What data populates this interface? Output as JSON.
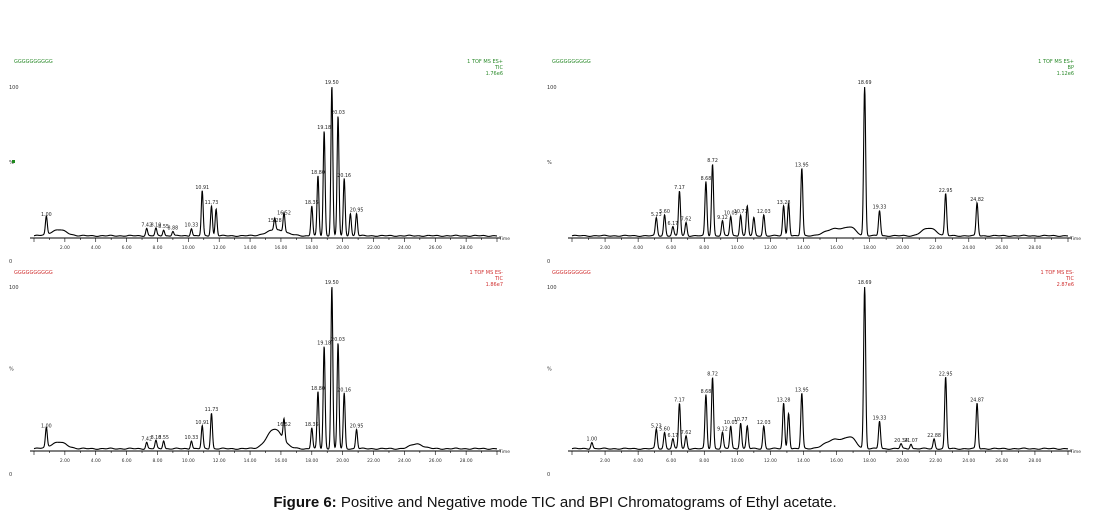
{
  "caption": {
    "label": "Figure 6:",
    "text": "Positive and Negative mode TIC and BPI Chromatograms of Ethyl acetate."
  },
  "colors": {
    "trace": "#000000",
    "pos_header": "#2a8a2a",
    "neg_header": "#d03030"
  },
  "chart_data": [
    {
      "type": "line",
      "panel": "top-left",
      "header_left": "GGGGGGGGGG",
      "header_right": [
        "1 TOF MS ES+",
        "TIC",
        "1.76e6"
      ],
      "ytick_labels": [
        "100",
        "%",
        "0"
      ],
      "xlim": [
        0,
        30
      ],
      "xtick_labels": [
        "2.00",
        "4.00",
        "6.00",
        "8.00",
        "10.00",
        "12.00",
        "14.00",
        "16.00",
        "18.00",
        "20.00",
        "22.00",
        "24.00",
        "26.00",
        "28.00"
      ],
      "peaks": [
        {
          "x": 0.8,
          "y": 12,
          "label": "1.00"
        },
        {
          "x": 7.3,
          "y": 5,
          "label": "7.42"
        },
        {
          "x": 7.9,
          "y": 5,
          "label": "8.10"
        },
        {
          "x": 8.4,
          "y": 4,
          "label": "8.55"
        },
        {
          "x": 9.0,
          "y": 3,
          "label": "8.88"
        },
        {
          "x": 10.2,
          "y": 5,
          "label": "10.33"
        },
        {
          "x": 10.9,
          "y": 30,
          "label": "10.91"
        },
        {
          "x": 11.5,
          "y": 20,
          "label": "11.73"
        },
        {
          "x": 11.8,
          "y": 18
        },
        {
          "x": 15.6,
          "y": 8,
          "label": "15.28"
        },
        {
          "x": 16.2,
          "y": 13,
          "label": "16.52"
        },
        {
          "x": 18.0,
          "y": 20,
          "label": "18.35"
        },
        {
          "x": 18.4,
          "y": 40,
          "label": "18.80"
        },
        {
          "x": 18.8,
          "y": 70,
          "label": "19.18"
        },
        {
          "x": 19.3,
          "y": 100,
          "label": "19.50"
        },
        {
          "x": 19.7,
          "y": 80,
          "label": "20.03"
        },
        {
          "x": 20.1,
          "y": 38,
          "label": "20.16"
        },
        {
          "x": 20.5,
          "y": 15
        },
        {
          "x": 20.9,
          "y": 15,
          "label": "20.95"
        }
      ],
      "humps": [
        {
          "x": 1.6,
          "y": 4,
          "w": 0.5
        },
        {
          "x": 15.7,
          "y": 4,
          "w": 0.6
        }
      ]
    },
    {
      "type": "line",
      "panel": "top-right",
      "header_left": "GGGGGGGGGG",
      "header_right": [
        "1 TOF MS ES+",
        "BP",
        "1.12e6"
      ],
      "ytick_labels": [
        "100",
        "%",
        "0"
      ],
      "xlim": [
        0,
        30
      ],
      "xtick_labels": [
        "2.00",
        "4.00",
        "6.00",
        "8.00",
        "10.00",
        "12.00",
        "14.00",
        "16.00",
        "18.00",
        "20.00",
        "22.00",
        "24.00",
        "26.00",
        "28.00"
      ],
      "peaks": [
        {
          "x": 5.1,
          "y": 12,
          "label": "5.23"
        },
        {
          "x": 5.6,
          "y": 14,
          "label": "5.60"
        },
        {
          "x": 6.1,
          "y": 6,
          "label": "6.17"
        },
        {
          "x": 6.5,
          "y": 30,
          "label": "7.17"
        },
        {
          "x": 6.9,
          "y": 9,
          "label": "7.62"
        },
        {
          "x": 8.1,
          "y": 36,
          "label": "8.68"
        },
        {
          "x": 8.5,
          "y": 48,
          "label": "8.72"
        },
        {
          "x": 9.1,
          "y": 10,
          "label": "9.12"
        },
        {
          "x": 9.6,
          "y": 13,
          "label": "10.03"
        },
        {
          "x": 10.2,
          "y": 14,
          "label": "10.77"
        },
        {
          "x": 10.6,
          "y": 20
        },
        {
          "x": 11.0,
          "y": 12
        },
        {
          "x": 11.6,
          "y": 14,
          "label": "12.03"
        },
        {
          "x": 12.8,
          "y": 20,
          "label": "13.28"
        },
        {
          "x": 13.1,
          "y": 22
        },
        {
          "x": 13.9,
          "y": 45,
          "label": "13.95"
        },
        {
          "x": 17.7,
          "y": 100,
          "label": "18.69"
        },
        {
          "x": 18.6,
          "y": 17,
          "label": "19.33"
        },
        {
          "x": 22.6,
          "y": 28,
          "label": "22.95"
        },
        {
          "x": 24.5,
          "y": 22,
          "label": "24.82"
        }
      ],
      "humps": [
        {
          "x": 16.0,
          "y": 5,
          "w": 0.6
        },
        {
          "x": 16.9,
          "y": 4,
          "w": 0.3
        },
        {
          "x": 21.3,
          "y": 3,
          "w": 0.3
        },
        {
          "x": 21.8,
          "y": 4,
          "w": 0.3
        }
      ]
    },
    {
      "type": "line",
      "panel": "bottom-left",
      "header_left": "GGGGGGGGGG",
      "header_right": [
        "1 TOF MS ES-",
        "TIC",
        "1.86e7"
      ],
      "ytick_labels": [
        "100",
        "%",
        "0"
      ],
      "xlim": [
        0,
        30
      ],
      "xtick_labels": [
        "2.00",
        "4.00",
        "6.00",
        "8.00",
        "10.00",
        "12.00",
        "14.00",
        "16.00",
        "18.00",
        "20.00",
        "22.00",
        "24.00",
        "26.00",
        "28.00"
      ],
      "peaks": [
        {
          "x": 0.8,
          "y": 12,
          "label": "1.00"
        },
        {
          "x": 7.3,
          "y": 4,
          "label": "7.42"
        },
        {
          "x": 7.9,
          "y": 5,
          "label": "8.10"
        },
        {
          "x": 8.4,
          "y": 5,
          "label": "8.55"
        },
        {
          "x": 10.2,
          "y": 5,
          "label": "10.33"
        },
        {
          "x": 10.9,
          "y": 14,
          "label": "10.91"
        },
        {
          "x": 11.5,
          "y": 22,
          "label": "11.73"
        },
        {
          "x": 16.2,
          "y": 13,
          "label": "16.52"
        },
        {
          "x": 18.0,
          "y": 13,
          "label": "18.35"
        },
        {
          "x": 18.4,
          "y": 35,
          "label": "18.80"
        },
        {
          "x": 18.8,
          "y": 63,
          "label": "19.18"
        },
        {
          "x": 19.3,
          "y": 100,
          "label": "19.50"
        },
        {
          "x": 19.7,
          "y": 65,
          "label": "20.03"
        },
        {
          "x": 20.1,
          "y": 34,
          "label": "20.16"
        },
        {
          "x": 20.9,
          "y": 12,
          "label": "20.95"
        }
      ],
      "humps": [
        {
          "x": 1.6,
          "y": 4,
          "w": 0.5
        },
        {
          "x": 15.6,
          "y": 12,
          "w": 0.5
        },
        {
          "x": 24.8,
          "y": 3,
          "w": 0.4
        }
      ]
    },
    {
      "type": "line",
      "panel": "bottom-right",
      "header_left": "GGGGGGGGGG",
      "header_right": [
        "1 TOF MS ES-",
        "TIC",
        "2.87e6"
      ],
      "ytick_labels": [
        "100",
        "%",
        "0"
      ],
      "xlim": [
        0,
        30
      ],
      "xtick_labels": [
        "2.00",
        "4.00",
        "6.00",
        "8.00",
        "10.00",
        "12.00",
        "14.00",
        "16.00",
        "18.00",
        "20.00",
        "22.00",
        "24.00",
        "26.00",
        "28.00"
      ],
      "peaks": [
        {
          "x": 1.2,
          "y": 4,
          "label": "1.00"
        },
        {
          "x": 5.1,
          "y": 12,
          "label": "5.23"
        },
        {
          "x": 5.6,
          "y": 10,
          "label": "5.60"
        },
        {
          "x": 6.1,
          "y": 6,
          "label": "6.17"
        },
        {
          "x": 6.5,
          "y": 28,
          "label": "7.17"
        },
        {
          "x": 6.9,
          "y": 8,
          "label": "7.62"
        },
        {
          "x": 8.1,
          "y": 33,
          "label": "8.68"
        },
        {
          "x": 8.5,
          "y": 44,
          "label": "8.72"
        },
        {
          "x": 9.1,
          "y": 10,
          "label": "9.12"
        },
        {
          "x": 9.6,
          "y": 14,
          "label": "10.03"
        },
        {
          "x": 10.2,
          "y": 16,
          "label": "10.77"
        },
        {
          "x": 10.6,
          "y": 14
        },
        {
          "x": 11.6,
          "y": 14,
          "label": "12.03"
        },
        {
          "x": 12.8,
          "y": 28,
          "label": "13.28"
        },
        {
          "x": 13.1,
          "y": 22
        },
        {
          "x": 13.9,
          "y": 34,
          "label": "13.95"
        },
        {
          "x": 17.7,
          "y": 100,
          "label": "18.69"
        },
        {
          "x": 18.6,
          "y": 17,
          "label": "19.33"
        },
        {
          "x": 19.9,
          "y": 3,
          "label": "20.34"
        },
        {
          "x": 20.5,
          "y": 3,
          "label": "21.07"
        },
        {
          "x": 21.9,
          "y": 6,
          "label": "22.88"
        },
        {
          "x": 22.6,
          "y": 44,
          "label": "22.95"
        },
        {
          "x": 24.5,
          "y": 28,
          "label": "24.87"
        }
      ],
      "humps": [
        {
          "x": 16.0,
          "y": 6,
          "w": 0.6
        },
        {
          "x": 16.9,
          "y": 5,
          "w": 0.3
        }
      ]
    }
  ]
}
